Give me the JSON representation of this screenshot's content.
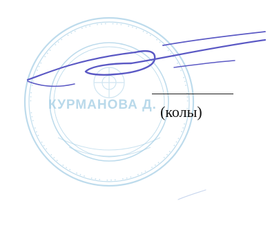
{
  "document": {
    "caption": "(колы)"
  },
  "stamp": {
    "legible_text": "КУРМАНОВА Д.",
    "ink_color": "#a8d0e6"
  },
  "signature": {
    "ink_color": "#5a58c4"
  }
}
